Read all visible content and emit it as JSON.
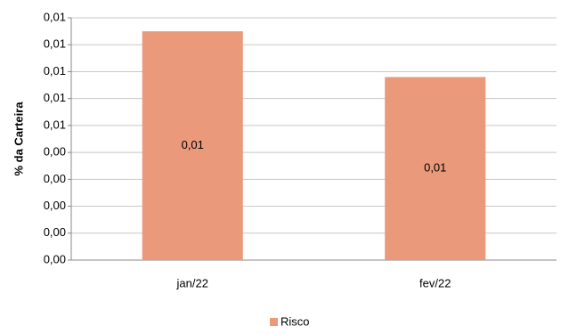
{
  "chart_data": {
    "type": "bar",
    "y_label": "% da Carteira",
    "categories": [
      "jan/22",
      "fev/22"
    ],
    "series": [
      {
        "name": "Risco",
        "color": "#ea9a7b",
        "values": [
          0.0085,
          0.0068
        ],
        "value_labels": [
          "0,01",
          "0,01"
        ]
      }
    ],
    "ylim": [
      0,
      0.009
    ],
    "yticks": [
      {
        "value": 0,
        "label": "0,00"
      },
      {
        "value": 0.001,
        "label": "0,00"
      },
      {
        "value": 0.002,
        "label": "0,00"
      },
      {
        "value": 0.003,
        "label": "0,00"
      },
      {
        "value": 0.004,
        "label": "0,00"
      },
      {
        "value": 0.005,
        "label": "0,01"
      },
      {
        "value": 0.006,
        "label": "0,01"
      },
      {
        "value": 0.007,
        "label": "0,01"
      },
      {
        "value": 0.008,
        "label": "0,01"
      },
      {
        "value": 0.009,
        "label": "0,01"
      }
    ],
    "grid": true,
    "legend": "bottom"
  }
}
